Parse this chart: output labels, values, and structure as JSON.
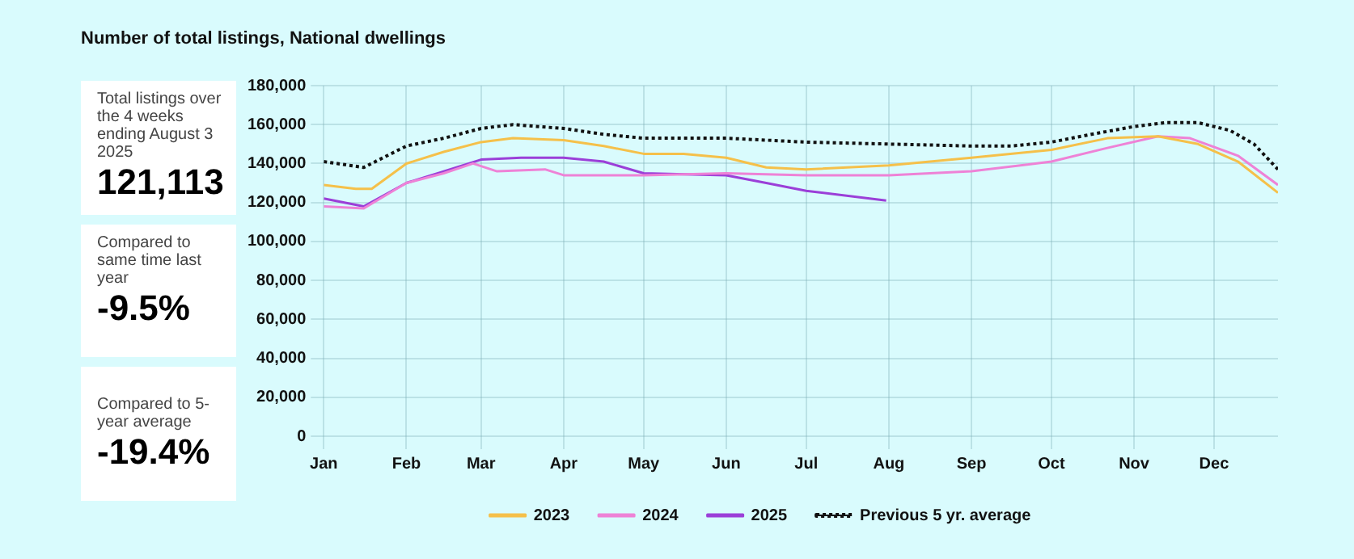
{
  "chart_data": {
    "type": "line",
    "title": "Number of total listings, National dwellings",
    "annotations": [
      "Total listings over the 4 weeks ending August 3 2025",
      "121,113",
      "Compared to same time last year",
      "-9.5%",
      "Compared to 5-year average",
      "-19.4%"
    ],
    "xlim": [
      "--01-01",
      "--12-25"
    ],
    "xticks": [
      {
        "value": "--01-01",
        "label": "Jan"
      },
      {
        "value": "--02-01",
        "label": "Feb"
      },
      {
        "value": "--03-01",
        "label": "Mar"
      },
      {
        "value": "--04-01",
        "label": "Apr"
      },
      {
        "value": "--05-01",
        "label": "May"
      },
      {
        "value": "--06-01",
        "label": "Jun"
      },
      {
        "value": "--07-01",
        "label": "Jul"
      },
      {
        "value": "--08-01",
        "label": "Aug"
      },
      {
        "value": "--09-01",
        "label": "Sep"
      },
      {
        "value": "--10-01",
        "label": "Oct"
      },
      {
        "value": "--11-01",
        "label": "Nov"
      },
      {
        "value": "--12-01",
        "label": "Dec"
      }
    ],
    "ylim": [
      0,
      180000
    ],
    "yticks": [
      {
        "value": 0,
        "label": "0"
      },
      {
        "value": 20000,
        "label": "20,000"
      },
      {
        "value": 40000,
        "label": "40,000"
      },
      {
        "value": 60000,
        "label": "60,000"
      },
      {
        "value": 80000,
        "label": "80,000"
      },
      {
        "value": 100000,
        "label": "100,000"
      },
      {
        "value": 120000,
        "label": "120,000"
      },
      {
        "value": 140000,
        "label": "140,000"
      },
      {
        "value": 160000,
        "label": "160,000"
      },
      {
        "value": 180000,
        "label": "180,000"
      }
    ],
    "grid": true,
    "legend": "bottom",
    "marker": "none",
    "series": [
      {
        "name": "2023",
        "color": "#f5c04a",
        "x": [
          "--01-01",
          "--01-13",
          "--01-19",
          "--02-01",
          "--02-15",
          "--03-01",
          "--03-13",
          "--04-01",
          "--04-16",
          "--05-01",
          "--05-16",
          "--06-01",
          "--06-16",
          "--07-01",
          "--08-01",
          "--09-01",
          "--10-01",
          "--10-22",
          "--11-10",
          "--11-25",
          "--12-10",
          "--12-25"
        ],
        "values": [
          129000,
          127000,
          127000,
          140000,
          146000,
          151000,
          153000,
          152000,
          149000,
          145000,
          145000,
          143000,
          138000,
          137000,
          139000,
          143000,
          147000,
          153000,
          154000,
          150000,
          141000,
          125000
        ]
      },
      {
        "name": "2024",
        "color": "#ee82d6",
        "x": [
          "--01-01",
          "--01-16",
          "--02-01",
          "--02-15",
          "--02-26",
          "--03-07",
          "--03-25",
          "--04-01",
          "--05-01",
          "--06-01",
          "--07-01",
          "--08-01",
          "--09-01",
          "--10-01",
          "--10-22",
          "--11-10",
          "--11-22",
          "--12-10",
          "--12-25"
        ],
        "values": [
          118000,
          117000,
          130000,
          135000,
          140000,
          136000,
          137000,
          134000,
          134000,
          135000,
          134000,
          134000,
          136000,
          141000,
          148000,
          154000,
          153000,
          144000,
          129000
        ]
      },
      {
        "name": "2025",
        "color": "#9b3fd8",
        "x": [
          "--01-01",
          "--01-16",
          "--02-01",
          "--02-15",
          "--03-01",
          "--03-16",
          "--04-01",
          "--04-16",
          "--05-01",
          "--06-01",
          "--06-16",
          "--07-01",
          "--07-31"
        ],
        "values": [
          122000,
          118000,
          130000,
          136000,
          142000,
          143000,
          143000,
          141000,
          135000,
          134000,
          130000,
          126000,
          121000
        ]
      },
      {
        "name": "Previous 5 yr. average",
        "color": "#111111",
        "line_style": "dotted",
        "x": [
          "--01-01",
          "--01-16",
          "--02-01",
          "--02-15",
          "--03-01",
          "--03-13",
          "--04-01",
          "--04-16",
          "--05-01",
          "--06-01",
          "--06-16",
          "--07-01",
          "--08-01",
          "--09-01",
          "--09-16",
          "--10-01",
          "--10-16",
          "--11-01",
          "--11-13",
          "--11-25",
          "--12-07",
          "--12-16",
          "--12-25"
        ],
        "values": [
          141000,
          138000,
          149000,
          153000,
          158000,
          160000,
          158000,
          155000,
          153000,
          153000,
          152000,
          151000,
          150000,
          149000,
          149000,
          151000,
          155000,
          159000,
          161000,
          161000,
          157000,
          150000,
          137000
        ]
      }
    ]
  }
}
